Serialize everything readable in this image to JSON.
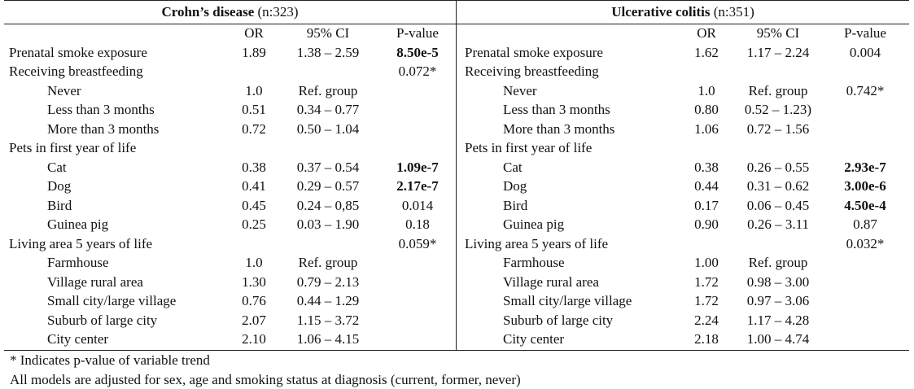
{
  "panels": [
    {
      "disease": "Crohn’s disease",
      "n_label": "(n:323)",
      "headers": {
        "or": "OR",
        "ci": "95% CI",
        "p": "P-value"
      },
      "rows": [
        {
          "label": "Prenatal smoke exposure",
          "indent": false,
          "or": "1.89",
          "ci": "1.38 – 2.59",
          "p": "8.50e-5",
          "bold": true
        },
        {
          "label": "Receiving breastfeeding",
          "indent": false,
          "or": "",
          "ci": "",
          "p": "0.072*",
          "bold": false
        },
        {
          "label": "Never",
          "indent": true,
          "or": "1.0",
          "ci": "Ref. group",
          "p": "",
          "bold": false
        },
        {
          "label": "Less than 3 months",
          "indent": true,
          "or": "0.51",
          "ci": "0.34 – 0.77",
          "p": "",
          "bold": false
        },
        {
          "label": "More than 3 months",
          "indent": true,
          "or": "0.72",
          "ci": "0.50 – 1.04",
          "p": "",
          "bold": false
        },
        {
          "label": "Pets in first year of life",
          "indent": false,
          "or": "",
          "ci": "",
          "p": "",
          "bold": false
        },
        {
          "label": "Cat",
          "indent": true,
          "or": "0.38",
          "ci": "0.37 – 0.54",
          "p": "1.09e-7",
          "bold": true
        },
        {
          "label": "Dog",
          "indent": true,
          "or": "0.41",
          "ci": "0.29 – 0.57",
          "p": "2.17e-7",
          "bold": true
        },
        {
          "label": "Bird",
          "indent": true,
          "or": "0.45",
          "ci": "0.24 – 0,85",
          "p": "0.014",
          "bold": false
        },
        {
          "label": "Guinea pig",
          "indent": true,
          "or": "0.25",
          "ci": "0.03 – 1.90",
          "p": "0.18",
          "bold": false
        },
        {
          "label": "Living area 5 years of life",
          "indent": false,
          "or": "",
          "ci": "",
          "p": "0.059*",
          "bold": false
        },
        {
          "label": "Farmhouse",
          "indent": true,
          "or": "1.0",
          "ci": "Ref. group",
          "p": "",
          "bold": false
        },
        {
          "label": "Village rural area",
          "indent": true,
          "or": "1.30",
          "ci": "0.79 – 2.13",
          "p": "",
          "bold": false
        },
        {
          "label": "Small city/large village",
          "indent": true,
          "or": "0.76",
          "ci": "0.44 – 1.29",
          "p": "",
          "bold": false
        },
        {
          "label": "Suburb of large city",
          "indent": true,
          "or": "2.07",
          "ci": "1.15 – 3.72",
          "p": "",
          "bold": false
        },
        {
          "label": "City center",
          "indent": true,
          "or": "2.10",
          "ci": "1.06 – 4.15",
          "p": "",
          "bold": false
        }
      ]
    },
    {
      "disease": "Ulcerative colitis",
      "n_label": "(n:351)",
      "headers": {
        "or": "OR",
        "ci": "95% CI",
        "p": "P-value"
      },
      "rows": [
        {
          "label": "Prenatal smoke exposure",
          "indent": false,
          "or": "1.62",
          "ci": "1.17 – 2.24",
          "p": "0.004",
          "bold": false
        },
        {
          "label": "Receiving breastfeeding",
          "indent": false,
          "or": "",
          "ci": "",
          "p": "",
          "bold": false
        },
        {
          "label": "Never",
          "indent": true,
          "or": "1.0",
          "ci": "Ref. group",
          "p": "0.742*",
          "bold": false
        },
        {
          "label": "Less than 3 months",
          "indent": true,
          "or": "0.80",
          "ci": "0.52 – 1.23)",
          "p": "",
          "bold": false
        },
        {
          "label": "More than 3 months",
          "indent": true,
          "or": "1.06",
          "ci": "0.72 – 1.56",
          "p": "",
          "bold": false
        },
        {
          "label": "Pets in first year of life",
          "indent": false,
          "or": "",
          "ci": "",
          "p": "",
          "bold": false
        },
        {
          "label": "Cat",
          "indent": true,
          "or": "0.38",
          "ci": "0.26 – 0.55",
          "p": "2.93e-7",
          "bold": true
        },
        {
          "label": "Dog",
          "indent": true,
          "or": "0.44",
          "ci": "0.31 – 0.62",
          "p": "3.00e-6",
          "bold": true
        },
        {
          "label": "Bird",
          "indent": true,
          "or": "0.17",
          "ci": "0.06 – 0.45",
          "p": "4.50e-4",
          "bold": true
        },
        {
          "label": "Guinea pig",
          "indent": true,
          "or": "0.90",
          "ci": "0.26 – 3.11",
          "p": "0.87",
          "bold": false
        },
        {
          "label": "Living area 5 years of life",
          "indent": false,
          "or": "",
          "ci": "",
          "p": "0.032*",
          "bold": false
        },
        {
          "label": "Farmhouse",
          "indent": true,
          "or": "1.00",
          "ci": "Ref. group",
          "p": "",
          "bold": false
        },
        {
          "label": "Village rural area",
          "indent": true,
          "or": "1.72",
          "ci": "0.98 – 3.00",
          "p": "",
          "bold": false
        },
        {
          "label": "Small city/large village",
          "indent": true,
          "or": "1.72",
          "ci": "0.97 – 3.06",
          "p": "",
          "bold": false
        },
        {
          "label": "Suburb of large city",
          "indent": true,
          "or": "2.24",
          "ci": "1.17 – 4.28",
          "p": "",
          "bold": false
        },
        {
          "label": "City center",
          "indent": true,
          "or": "2.18",
          "ci": "1.00 – 4.74",
          "p": "",
          "bold": false
        }
      ]
    }
  ],
  "footnotes": [
    "* Indicates p-value of variable trend",
    "All models are adjusted for sex, age and smoking status at diagnosis (current, former, never)"
  ]
}
